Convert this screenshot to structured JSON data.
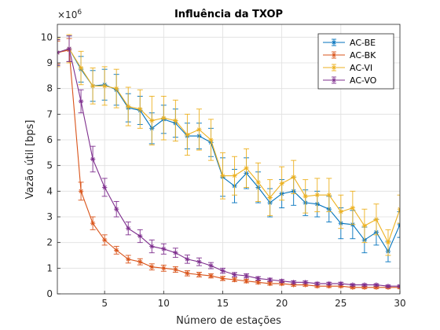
{
  "chart_data": {
    "type": "line",
    "title": "Influência da TXOP",
    "xlabel": "Número de estações",
    "ylabel": "Vazão útil [bps]",
    "y_multiplier_label": "×10",
    "y_multiplier_exp": "6",
    "xlim": [
      1,
      30
    ],
    "ylim": [
      0,
      10500000
    ],
    "x_ticks": [
      5,
      10,
      15,
      20,
      25,
      30
    ],
    "y_ticks": [
      0,
      1,
      2,
      3,
      4,
      5,
      6,
      7,
      8,
      9,
      10
    ],
    "grid": true,
    "legend_position": "top-right",
    "x": [
      1,
      2,
      3,
      4,
      5,
      6,
      7,
      8,
      9,
      10,
      11,
      12,
      13,
      14,
      15,
      16,
      17,
      18,
      19,
      20,
      21,
      22,
      23,
      24,
      25,
      26,
      27,
      28,
      29,
      30
    ],
    "series": [
      {
        "name": "AC-BE",
        "color": "#0072BD",
        "marker": "asterisk",
        "values": [
          9400000,
          9550000,
          8750000,
          8100000,
          8150000,
          7950000,
          7250000,
          7150000,
          6450000,
          6800000,
          6650000,
          6150000,
          6150000,
          5900000,
          4550000,
          4200000,
          4700000,
          4150000,
          3550000,
          3900000,
          4000000,
          3550000,
          3500000,
          3300000,
          2750000,
          2700000,
          2100000,
          2400000,
          1650000,
          2700000
        ],
        "err": [
          500000,
          500000,
          500000,
          600000,
          600000,
          600000,
          550000,
          550000,
          600000,
          550000,
          550000,
          500000,
          500000,
          550000,
          750000,
          650000,
          600000,
          600000,
          550000,
          550000,
          550000,
          500000,
          500000,
          500000,
          600000,
          550000,
          500000,
          500000,
          400000,
          500000
        ]
      },
      {
        "name": "AC-BK",
        "color": "#D95319",
        "marker": "asterisk",
        "values": [
          9400000,
          9500000,
          4000000,
          2750000,
          2100000,
          1700000,
          1350000,
          1250000,
          1050000,
          1000000,
          950000,
          800000,
          750000,
          700000,
          600000,
          550000,
          500000,
          450000,
          400000,
          400000,
          350000,
          350000,
          300000,
          300000,
          300000,
          250000,
          250000,
          250000,
          250000,
          250000
        ],
        "err": [
          450000,
          450000,
          350000,
          250000,
          200000,
          150000,
          150000,
          120000,
          120000,
          120000,
          110000,
          100000,
          90000,
          80000,
          80000,
          70000,
          70000,
          60000,
          60000,
          60000,
          50000,
          50000,
          50000,
          50000,
          50000,
          40000,
          40000,
          40000,
          40000,
          40000
        ]
      },
      {
        "name": "AC-VI",
        "color": "#EDB120",
        "marker": "asterisk",
        "values": [
          9400000,
          9550000,
          8800000,
          8100000,
          8100000,
          8000000,
          7300000,
          7200000,
          6750000,
          6850000,
          6750000,
          6200000,
          6400000,
          6000000,
          4600000,
          4600000,
          4900000,
          4350000,
          3750000,
          4300000,
          4550000,
          3800000,
          3850000,
          3850000,
          3200000,
          3350000,
          2650000,
          2900000,
          2000000,
          3300000
        ],
        "err": [
          550000,
          550000,
          650000,
          700000,
          750000,
          750000,
          750000,
          750000,
          950000,
          850000,
          800000,
          800000,
          800000,
          800000,
          900000,
          750000,
          750000,
          750000,
          700000,
          650000,
          650000,
          650000,
          650000,
          650000,
          650000,
          650000,
          650000,
          600000,
          500000,
          550000
        ]
      },
      {
        "name": "AC-VO",
        "color": "#7E2F8E",
        "marker": "asterisk",
        "values": [
          9400000,
          9550000,
          7500000,
          5250000,
          4150000,
          3300000,
          2550000,
          2250000,
          1850000,
          1750000,
          1600000,
          1350000,
          1250000,
          1100000,
          900000,
          750000,
          700000,
          600000,
          550000,
          500000,
          450000,
          450000,
          400000,
          400000,
          400000,
          350000,
          350000,
          350000,
          300000,
          300000
        ],
        "err": [
          500000,
          500000,
          450000,
          500000,
          350000,
          300000,
          250000,
          250000,
          250000,
          200000,
          180000,
          160000,
          150000,
          120000,
          100000,
          80000,
          80000,
          70000,
          60000,
          60000,
          60000,
          50000,
          50000,
          50000,
          50000,
          40000,
          40000,
          40000,
          40000,
          40000
        ]
      }
    ]
  }
}
